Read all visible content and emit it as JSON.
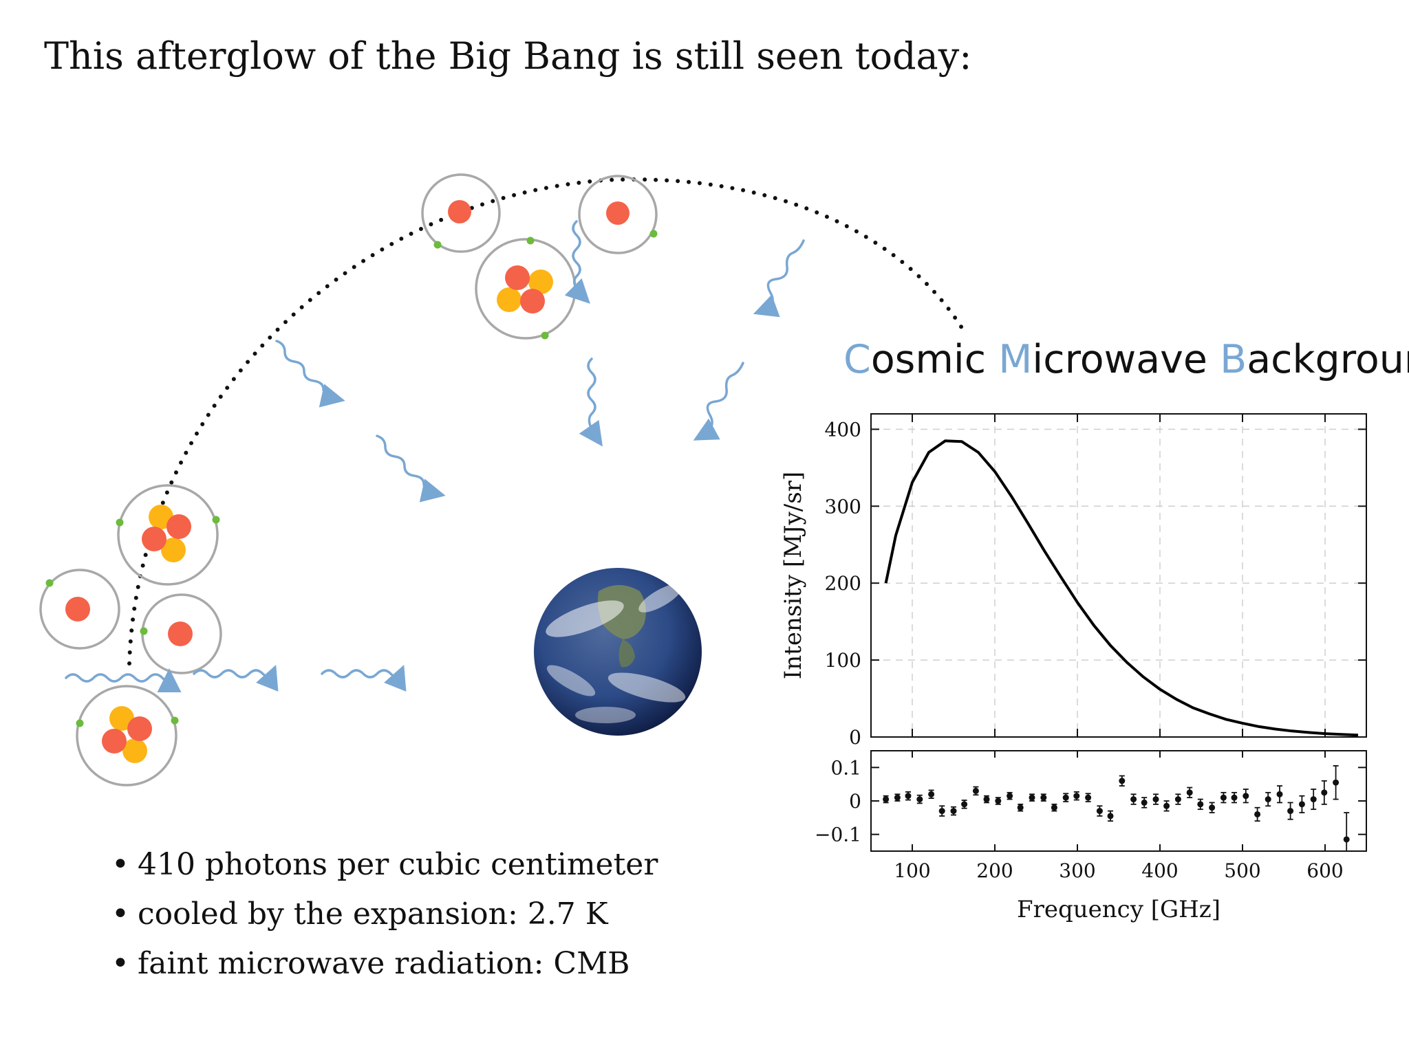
{
  "slide": {
    "title": "This afterglow of the Big Bang is still seen today:",
    "bullets": [
      "410 photons per cubic centimeter",
      "cooled by the expansion: 2.7 K",
      "faint microwave radiation: CMB"
    ]
  },
  "cmb_title": {
    "w1_initial": "C",
    "w1_rest": "osmic",
    "w2_initial": "M",
    "w2_rest": "icrowave",
    "w3_initial": "B",
    "w3_rest": "ackground"
  },
  "colors": {
    "accent": "#79a7d3",
    "proton": "#f4624a",
    "neutron": "#fdb515",
    "electron": "#6cbb3c",
    "atom_ring": "#a8a8a8",
    "curve": "#000000"
  },
  "icons": [
    "atom-icon",
    "helium-atom-icon",
    "photon-wave-icon",
    "earth-icon"
  ],
  "chart_data": [
    {
      "type": "line",
      "title": "",
      "xlabel": "",
      "ylabel": "Intensity [MJy/sr]",
      "xlim": [
        50,
        650
      ],
      "ylim": [
        0,
        420
      ],
      "yticks": [
        0,
        100,
        200,
        300,
        400
      ],
      "xticks": [
        100,
        200,
        300,
        400,
        500,
        600
      ],
      "grid": true,
      "series": [
        {
          "x": [
            68,
            80,
            100,
            120,
            140,
            160,
            180,
            200,
            220,
            240,
            260,
            280,
            300,
            320,
            340,
            360,
            380,
            400,
            420,
            440,
            460,
            480,
            500,
            520,
            540,
            560,
            580,
            600,
            620,
            640
          ],
          "y": [
            200,
            262,
            331,
            370,
            385,
            384,
            370,
            345,
            313,
            278,
            242,
            208,
            175,
            145,
            119,
            97,
            78,
            62,
            49,
            38,
            30,
            23,
            18,
            13.5,
            10.3,
            7.8,
            5.9,
            4.4,
            3.3,
            2.4
          ]
        }
      ]
    },
    {
      "type": "scatter",
      "title": "",
      "xlabel": "Frequency [GHz]",
      "ylabel": "",
      "xlim": [
        50,
        650
      ],
      "ylim": [
        -0.15,
        0.15
      ],
      "yticks": [
        0.1,
        0,
        -0.1
      ],
      "ytick_labels": [
        "0.1",
        "0",
        "−0.1"
      ],
      "xticks": [
        100,
        200,
        300,
        400,
        500,
        600
      ],
      "xtick_labels": [
        "100",
        "200",
        "300",
        "400",
        "500",
        "600"
      ],
      "grid": false,
      "series": [
        {
          "x": [
            68,
            82,
            95,
            109,
            123,
            136,
            150,
            163,
            177,
            190,
            204,
            218,
            231,
            245,
            259,
            272,
            286,
            299,
            313,
            327,
            340,
            354,
            368,
            381,
            395,
            408,
            422,
            436,
            449,
            463,
            477,
            490,
            504,
            518,
            531,
            545,
            558,
            572,
            586,
            599,
            613,
            626
          ],
          "y": [
            0.005,
            0.01,
            0.015,
            0.005,
            0.02,
            -0.03,
            -0.03,
            -0.01,
            0.03,
            0.005,
            0.0,
            0.015,
            -0.02,
            0.01,
            0.01,
            -0.02,
            0.01,
            0.015,
            0.01,
            -0.03,
            -0.045,
            0.06,
            0.005,
            -0.005,
            0.005,
            -0.015,
            0.005,
            0.025,
            -0.01,
            -0.02,
            0.01,
            0.01,
            0.015,
            -0.04,
            0.005,
            0.02,
            -0.03,
            -0.01,
            0.005,
            0.025,
            0.055,
            -0.115
          ],
          "err": [
            0.01,
            0.01,
            0.012,
            0.012,
            0.012,
            0.015,
            0.012,
            0.012,
            0.012,
            0.01,
            0.01,
            0.01,
            0.01,
            0.01,
            0.01,
            0.01,
            0.012,
            0.012,
            0.012,
            0.015,
            0.015,
            0.015,
            0.015,
            0.015,
            0.015,
            0.015,
            0.015,
            0.015,
            0.015,
            0.015,
            0.015,
            0.015,
            0.02,
            0.02,
            0.02,
            0.025,
            0.025,
            0.025,
            0.03,
            0.035,
            0.05,
            0.08
          ]
        }
      ]
    }
  ]
}
